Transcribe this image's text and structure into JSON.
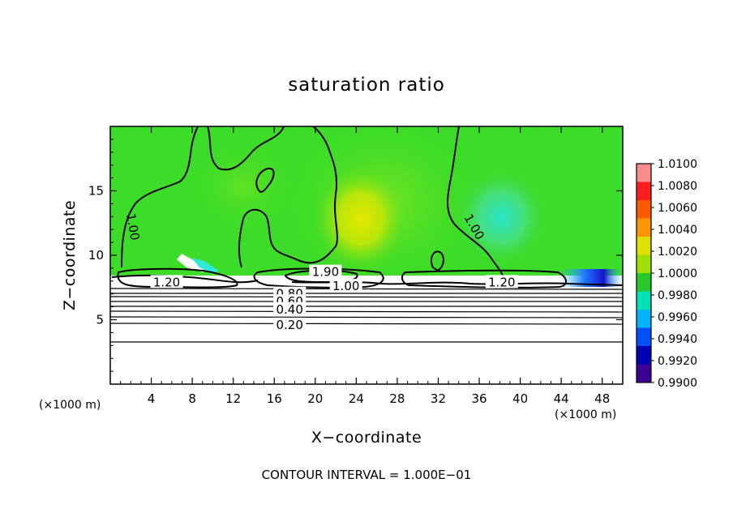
{
  "chart_data": {
    "type": "heatmap",
    "title": "saturation ratio",
    "xlabel": "X−coordinate",
    "ylabel": "Z−coordinate",
    "x_unit_left": "(×1000 m)",
    "x_unit_right": "(×1000 m)",
    "xlim": [
      0,
      50
    ],
    "ylim": [
      0,
      20
    ],
    "x_ticks": [
      4,
      8,
      12,
      16,
      20,
      24,
      28,
      32,
      36,
      40,
      44,
      48
    ],
    "y_ticks": [
      5,
      10,
      15
    ],
    "colorbar": {
      "min": 0.99,
      "max": 1.01,
      "ticks": [
        "1.0100",
        "1.0080",
        "1.0060",
        "1.0040",
        "1.0020",
        "1.0000",
        "0.9980",
        "0.9960",
        "0.9940",
        "0.9920",
        "0.9900"
      ],
      "colors": [
        "#ff8c8c",
        "#ff1e1e",
        "#ff5a00",
        "#ff9600",
        "#e0e000",
        "#a0e000",
        "#28c828",
        "#00e0b4",
        "#00b4ff",
        "#0050ff",
        "#0000b4",
        "#3c0096"
      ]
    },
    "contour_labels": [
      {
        "text": "1.00",
        "x": 2.2,
        "z": 12.2
      },
      {
        "text": "1.00",
        "x": 35.5,
        "z": 12.2
      },
      {
        "text": "1.20",
        "x": 5.5,
        "z": 7.9
      },
      {
        "text": "1.20",
        "x": 38.2,
        "z": 7.9
      },
      {
        "text": "1.90",
        "x": 21.0,
        "z": 8.7
      },
      {
        "text": "1.00",
        "x": 23.0,
        "z": 7.6
      },
      {
        "text": "0.80",
        "x": 17.5,
        "z": 7.0
      },
      {
        "text": "0.60",
        "x": 17.5,
        "z": 6.4
      },
      {
        "text": "0.40",
        "x": 17.5,
        "z": 5.8
      },
      {
        "text": "0.20",
        "x": 17.5,
        "z": 4.6
      }
    ],
    "contour_interval_text": "CONTOUR INTERVAL = 1.000E−01"
  }
}
